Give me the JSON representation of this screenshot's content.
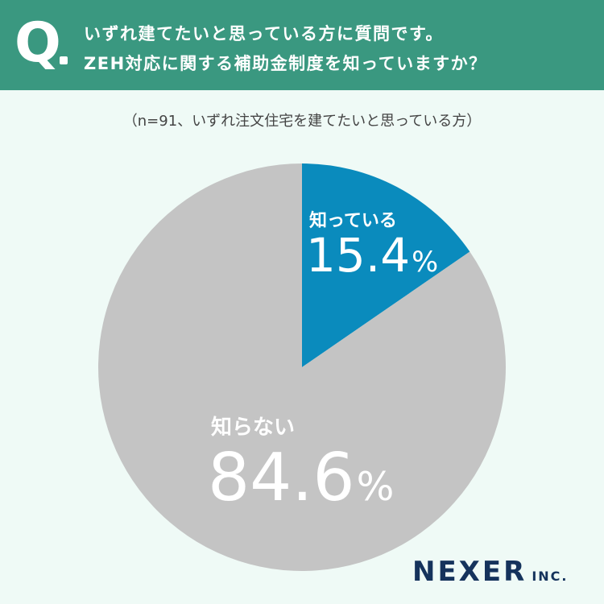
{
  "header": {
    "q_letter": "Q",
    "line1": "いずれ建てたいと思っている方に質問です。",
    "line2": "ZEH対応に関する補助金制度を知っていますか？",
    "bg_color": "#3a9880"
  },
  "sample_note": "（n=91、いずれ注文住宅を建てたいと思っている方）",
  "chart_data": {
    "type": "pie",
    "title": "ZEH対応に関する補助金制度を知っていますか？",
    "slices": [
      {
        "label": "知っている",
        "value": 15.4,
        "value_text": "15.4",
        "color": "#0a8bbd"
      },
      {
        "label": "知らない",
        "value": 84.6,
        "value_text": "84.6",
        "color": "#c4c4c4"
      }
    ],
    "unit": "%",
    "start": "12 o'clock",
    "direction": "clockwise"
  },
  "logo": {
    "main": "NEXER",
    "sub": "INC."
  }
}
